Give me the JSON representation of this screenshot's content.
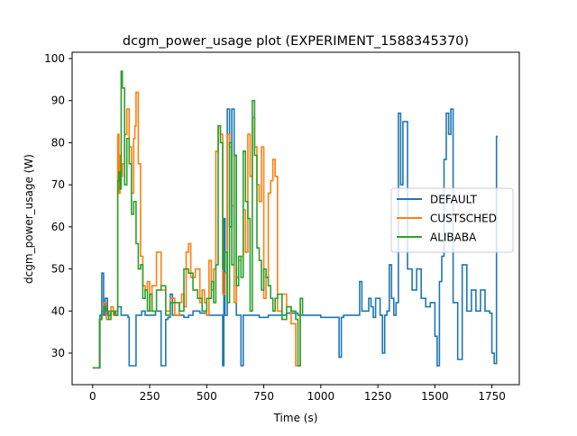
{
  "chart_data": {
    "type": "line",
    "title": "dcgm_power_usage plot (EXPERIMENT_1588345370)",
    "xlabel": "Time (s)",
    "ylabel": "dcgm_power_usage (W)",
    "xlim": [
      -90,
      1870
    ],
    "ylim": [
      22.5,
      101.5
    ],
    "xticks": [
      0,
      250,
      500,
      750,
      1000,
      1250,
      1500,
      1750
    ],
    "yticks": [
      30,
      40,
      50,
      60,
      70,
      80,
      90,
      100
    ],
    "grid": false,
    "legend_position": "center-right",
    "series": [
      {
        "name": "DEFAULT",
        "color": "#1f77b4",
        "x": [
          0,
          25,
          32,
          40,
          48,
          55,
          65,
          80,
          95,
          110,
          125,
          140,
          155,
          160,
          175,
          190,
          200,
          215,
          230,
          250,
          275,
          300,
          320,
          330,
          340,
          350,
          360,
          380,
          400,
          420,
          440,
          470,
          500,
          520,
          540,
          560,
          570,
          575,
          580,
          590,
          600,
          610,
          620,
          630,
          640,
          650,
          660,
          670,
          680,
          700,
          720,
          730,
          750,
          770,
          800,
          850,
          900,
          950,
          990,
          1000,
          1030,
          1060,
          1080,
          1090,
          1100,
          1150,
          1170,
          1180,
          1210,
          1220,
          1230,
          1240,
          1260,
          1270,
          1280,
          1290,
          1300,
          1310,
          1320,
          1330,
          1340,
          1350,
          1360,
          1380,
          1400,
          1420,
          1440,
          1460,
          1480,
          1500,
          1510,
          1520,
          1530,
          1540,
          1550,
          1560,
          1570,
          1580,
          1600,
          1620,
          1640,
          1660,
          1680,
          1700,
          1720,
          1740,
          1750,
          1760,
          1770,
          1775
        ],
        "y": [
          26.5,
          26.5,
          39,
          49,
          39,
          43,
          39,
          40,
          39,
          41,
          39,
          39,
          38.5,
          27,
          27,
          39,
          39,
          40,
          39,
          39,
          40,
          27,
          38,
          38.5,
          44,
          39,
          39,
          39,
          38.5,
          39,
          40,
          39.5,
          39,
          39,
          39,
          39,
          27,
          62,
          39,
          88,
          60,
          88,
          77,
          39,
          39,
          27,
          39,
          39,
          39,
          39,
          39,
          38.5,
          38.5,
          39,
          39,
          39.5,
          39,
          39,
          39,
          38.5,
          38.5,
          38.5,
          29,
          38.5,
          39,
          39,
          47,
          40,
          43,
          41,
          38.5,
          43,
          39,
          30,
          39,
          40,
          51,
          43,
          39,
          42,
          87,
          70,
          85,
          50,
          45,
          50,
          43,
          41,
          42,
          34,
          27,
          47,
          53,
          76,
          87,
          82,
          88,
          42,
          28.5,
          51,
          40,
          45,
          40,
          45,
          40,
          39.5,
          30,
          27.5,
          81.5,
          81.5
        ]
      },
      {
        "name": "CUSTSCHED",
        "color": "#ff7f0e",
        "x": [
          0,
          25,
          30,
          40,
          50,
          60,
          70,
          80,
          90,
          100,
          110,
          115,
          120,
          125,
          130,
          140,
          150,
          160,
          170,
          180,
          185,
          190,
          200,
          210,
          220,
          230,
          240,
          250,
          260,
          280,
          300,
          320,
          340,
          360,
          380,
          390,
          400,
          410,
          420,
          430,
          450,
          470,
          480,
          490,
          500,
          510,
          520,
          530,
          540,
          550,
          560,
          570,
          580,
          590,
          600,
          610,
          620,
          630,
          640,
          650,
          660,
          670,
          680,
          690,
          700,
          710,
          720,
          730,
          740,
          750,
          760,
          770,
          780,
          790,
          800,
          810,
          830,
          850,
          870,
          890,
          910
        ],
        "y": [
          26.5,
          26.5,
          38,
          40,
          42,
          38,
          40,
          41,
          39,
          40,
          82,
          68,
          77,
          72,
          75,
          82,
          88,
          79,
          68,
          81,
          84,
          92,
          75,
          53,
          46,
          45,
          47,
          40,
          46,
          54,
          45,
          40,
          43,
          39,
          42,
          44,
          41,
          54,
          56,
          48,
          50,
          42,
          45,
          42,
          39,
          52,
          45,
          50,
          78,
          84,
          82,
          44,
          49,
          82,
          79,
          65,
          42,
          48,
          52,
          53,
          64,
          54,
          82,
          72,
          86,
          79,
          70,
          66,
          79,
          43,
          48,
          68,
          71,
          76,
          72,
          40,
          44,
          41,
          37,
          27,
          42
        ]
      },
      {
        "name": "ALIBABA",
        "color": "#2ca02c",
        "x": [
          0,
          25,
          30,
          40,
          50,
          60,
          70,
          80,
          90,
          100,
          110,
          115,
          120,
          125,
          130,
          140,
          150,
          160,
          170,
          180,
          190,
          200,
          210,
          220,
          230,
          240,
          250,
          260,
          280,
          300,
          320,
          340,
          360,
          380,
          400,
          420,
          440,
          460,
          480,
          500,
          520,
          530,
          540,
          550,
          560,
          570,
          580,
          590,
          600,
          610,
          620,
          630,
          640,
          650,
          660,
          670,
          680,
          690,
          700,
          710,
          720,
          730,
          740,
          750,
          760,
          770,
          780,
          790,
          800,
          810,
          830,
          850,
          870,
          890,
          900,
          910,
          920
        ],
        "y": [
          26.5,
          26.5,
          38,
          40,
          41,
          40,
          38,
          40,
          40,
          39,
          71,
          73,
          69,
          97,
          93,
          70,
          81,
          75,
          63,
          66,
          56,
          50,
          51,
          43,
          45,
          40,
          44,
          40,
          45,
          46,
          39,
          42,
          42,
          40,
          50,
          49,
          45,
          43,
          40,
          43,
          47,
          42,
          51,
          84,
          80,
          50,
          54,
          42,
          80,
          51,
          77,
          46,
          53,
          48,
          78,
          66,
          62,
          40,
          90,
          77,
          55,
          52,
          45,
          50,
          48,
          46,
          43,
          40,
          43,
          44,
          38,
          41,
          40,
          38,
          27,
          43,
          39
        ]
      }
    ]
  }
}
